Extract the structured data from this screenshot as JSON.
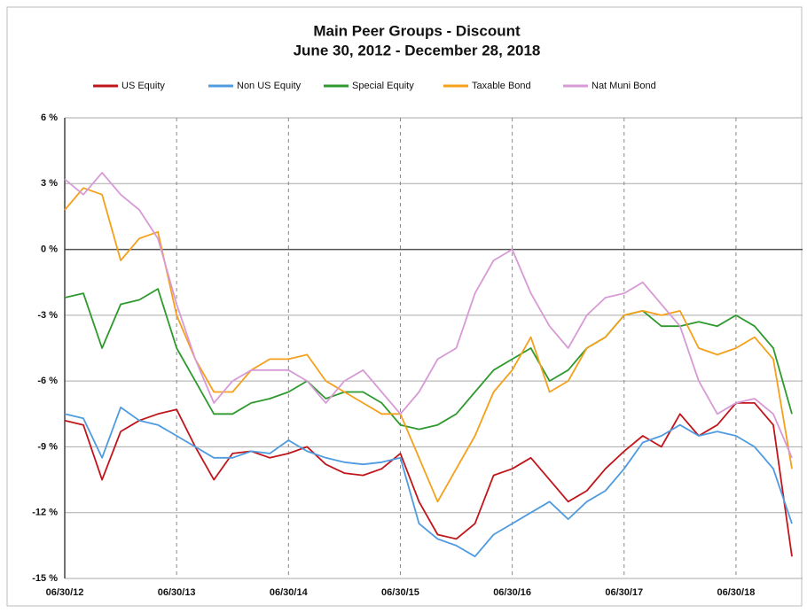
{
  "chart_data": {
    "type": "line",
    "title": "Main Peer Groups   - Discount",
    "subtitle": "June 30, 2012 - December 28, 2018",
    "categories": [
      "06/30/12",
      null,
      null,
      null,
      null,
      null,
      "06/30/13",
      null,
      null,
      null,
      null,
      null,
      "06/30/14",
      null,
      null,
      null,
      null,
      null,
      "06/30/15",
      null,
      null,
      null,
      null,
      null,
      "06/30/16",
      null,
      null,
      null,
      null,
      null,
      "06/30/17",
      null,
      null,
      null,
      null,
      null,
      "06/30/18",
      null,
      null,
      null
    ],
    "ylim": [
      -15,
      6
    ],
    "yticks": [
      {
        "value": -15,
        "label": "-15 %"
      },
      {
        "value": -12,
        "label": "-12 %"
      },
      {
        "value": -9,
        "label": "-9 %"
      },
      {
        "value": -6,
        "label": "-6 %"
      },
      {
        "value": -3,
        "label": "-3 %"
      },
      {
        "value": 0,
        "label": "0 %"
      },
      {
        "value": 3,
        "label": "3 %"
      },
      {
        "value": 6,
        "label": "6 %"
      }
    ],
    "grid": true,
    "legend": "top",
    "series": [
      {
        "name": "US Equity",
        "color": "#c0161b",
        "values": [
          -7.8,
          -8,
          -10.5,
          -8.3,
          -7.8,
          -7.5,
          -7.3,
          -9,
          -10.5,
          -9.3,
          -9.2,
          -9.5,
          -9.3,
          -9,
          -9.8,
          -10.2,
          -10.3,
          -10,
          -9.3,
          -11.5,
          -13,
          -13.2,
          -12.5,
          -10.3,
          -10,
          -9.5,
          -10.5,
          -11.5,
          -11,
          -10,
          -9.2,
          -8.5,
          -9,
          -7.5,
          -8.5,
          -8,
          -7,
          -7,
          -8,
          -14
        ]
      },
      {
        "name": "Non US Equity",
        "color": "#4f9be0",
        "values": [
          -7.5,
          -7.7,
          -9.5,
          -7.2,
          -7.8,
          -8,
          -8.5,
          -9,
          -9.5,
          -9.5,
          -9.2,
          -9.3,
          -8.7,
          -9.2,
          -9.5,
          -9.7,
          -9.8,
          -9.7,
          -9.5,
          -12.5,
          -13.2,
          -13.5,
          -14,
          -13,
          -12.5,
          -12,
          -11.5,
          -12.3,
          -11.5,
          -11,
          -10,
          -8.8,
          -8.5,
          -8,
          -8.5,
          -8.3,
          -8.5,
          -9,
          -10,
          -12.5
        ]
      },
      {
        "name": "Special Equity",
        "color": "#2e9a2e",
        "values": [
          -2.2,
          -2,
          -4.5,
          -2.5,
          -2.3,
          -1.8,
          -4.5,
          -6,
          -7.5,
          -7.5,
          -7,
          -6.8,
          -6.5,
          -6,
          -6.8,
          -6.5,
          -6.5,
          -7,
          -8,
          -8.2,
          -8,
          -7.5,
          -6.5,
          -5.5,
          -5,
          -4.5,
          -6,
          -5.5,
          -4.5,
          -4,
          -3,
          -2.8,
          -3.5,
          -3.5,
          -3.3,
          -3.5,
          -3,
          -3.5,
          -4.5,
          -7.5
        ]
      },
      {
        "name": "Taxable Bond",
        "color": "#f5a01a",
        "values": [
          1.8,
          2.8,
          2.5,
          -0.5,
          0.5,
          0.8,
          -3,
          -5,
          -6.5,
          -6.5,
          -5.5,
          -5,
          -5,
          -4.8,
          -6,
          -6.5,
          -7,
          -7.5,
          -7.5,
          -9.5,
          -11.5,
          -10,
          -8.5,
          -6.5,
          -5.5,
          -4,
          -6.5,
          -6,
          -4.5,
          -4,
          -3,
          -2.8,
          -3,
          -2.8,
          -4.5,
          -4.8,
          -4.5,
          -4,
          -5,
          -10
        ]
      },
      {
        "name": "Nat Muni Bond",
        "color": "#d79ad6",
        "values": [
          3.2,
          2.5,
          3.5,
          2.5,
          1.8,
          0.5,
          -2.5,
          -5,
          -7,
          -6,
          -5.5,
          -5.5,
          -5.5,
          -6,
          -7,
          -6,
          -5.5,
          -6.5,
          -7.5,
          -6.5,
          -5,
          -4.5,
          -2,
          -0.5,
          0,
          -2,
          -3.5,
          -4.5,
          -3,
          -2.2,
          -2,
          -1.5,
          -2.5,
          -3.5,
          -6,
          -7.5,
          -7,
          -6.8,
          -7.5,
          -9.5
        ]
      }
    ]
  }
}
